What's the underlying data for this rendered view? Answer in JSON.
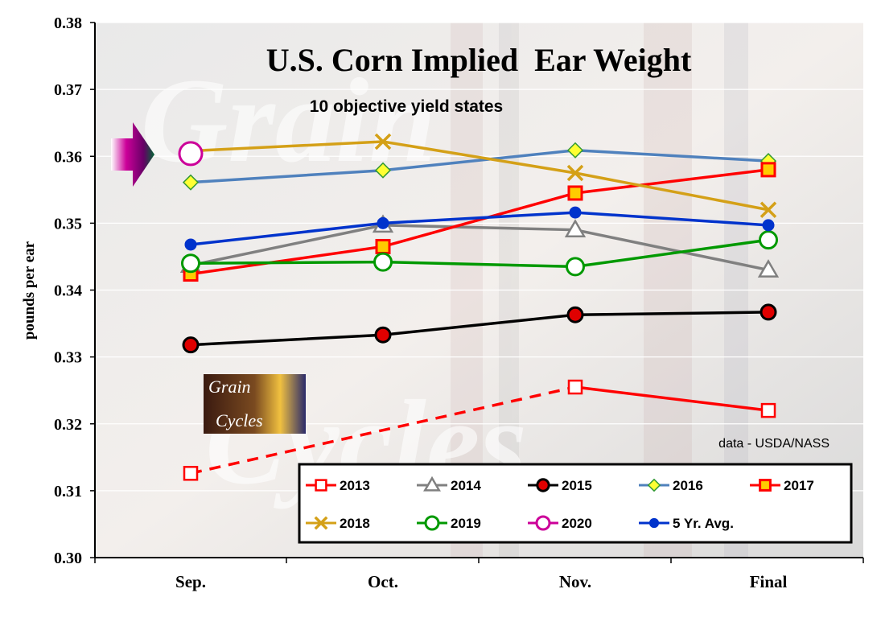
{
  "chart_data": {
    "type": "line",
    "title": "U.S. Corn Implied  Ear Weight",
    "subtitle": "10 objective yield states",
    "ylabel": "pounds  per ear",
    "xlabel": "",
    "source": "data - USDA/NASS",
    "categories": [
      "Sep.",
      "Oct.",
      "Nov.",
      "Final"
    ],
    "ylim": [
      0.3,
      0.38
    ],
    "yticks": [
      "0.30",
      "0.31",
      "0.32",
      "0.33",
      "0.34",
      "0.35",
      "0.36",
      "0.37",
      "0.38"
    ],
    "ytick_values": [
      0.3,
      0.31,
      0.32,
      0.33,
      0.34,
      0.35,
      0.36,
      0.37,
      0.38
    ],
    "grid": "horizontal",
    "legend_position": "bottom-right",
    "series": [
      {
        "name": "2013",
        "values": [
          0.3126,
          null,
          0.3255,
          0.322
        ],
        "color": "#ff0000",
        "marker": "square-open",
        "dashed_first_segment": true
      },
      {
        "name": "2014",
        "values": [
          0.3437,
          0.3497,
          0.349,
          0.343
        ],
        "color": "#808080",
        "marker": "triangle-open"
      },
      {
        "name": "2015",
        "values": [
          0.3318,
          0.3333,
          0.3363,
          0.3367
        ],
        "color": "#000000",
        "marker": "circle-red"
      },
      {
        "name": "2016",
        "values": [
          0.3561,
          0.3579,
          0.3609,
          0.3593
        ],
        "color": "#4f81bd",
        "marker": "diamond-yellow"
      },
      {
        "name": "2017",
        "values": [
          0.3424,
          0.3465,
          0.3545,
          0.358
        ],
        "color": "#ff0000",
        "marker": "square-yellow"
      },
      {
        "name": "2018",
        "values": [
          0.3608,
          0.3622,
          0.3575,
          0.352
        ],
        "color": "#d4a017",
        "marker": "x"
      },
      {
        "name": "2019",
        "values": [
          0.344,
          0.3442,
          0.3435,
          0.3475
        ],
        "color": "#009900",
        "marker": "circle-open"
      },
      {
        "name": "2020",
        "values": [
          0.3604,
          null,
          null,
          null
        ],
        "color": "#cc0099",
        "marker": "circle-open"
      },
      {
        "name": "5 Yr. Avg.",
        "values": [
          0.3468,
          0.35,
          0.3516,
          0.3497
        ],
        "color": "#0033cc",
        "marker": "circle-filled"
      }
    ]
  },
  "watermark": {
    "text1": "Grain",
    "text2": "Cycles"
  },
  "logo": {
    "line1": "Grain",
    "line2": "Cycles"
  },
  "colors": {
    "plot_background": "#dcdcdc",
    "arrow": "#cc0099"
  }
}
